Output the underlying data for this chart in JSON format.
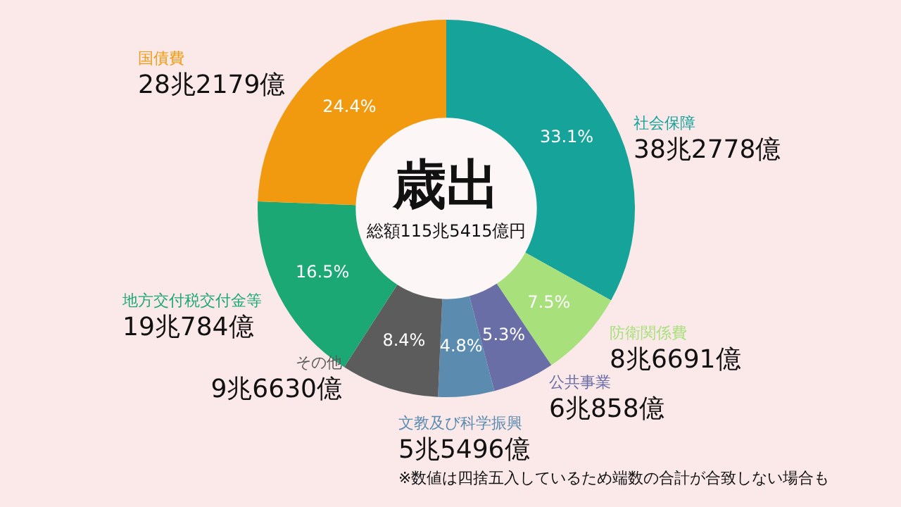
{
  "chart_data": {
    "type": "donut",
    "title": "歳出",
    "subtitle": "総額115兆5415億円",
    "categories": [
      "社会保障",
      "防衛関係費",
      "公共事業",
      "文教及び科学振興",
      "その他",
      "地方交付税交付金等",
      "国債費"
    ],
    "values": [
      33.1,
      7.5,
      5.3,
      4.8,
      8.4,
      16.5,
      24.4
    ],
    "colors": [
      "#16a39a",
      "#a8e07c",
      "#6a6ea6",
      "#5b8cb0",
      "#5c5c5c",
      "#1ba875",
      "#f29a0f"
    ],
    "value_labels": [
      "33.1%",
      "7.5%",
      "5.3%",
      "4.8%",
      "8.4%",
      "16.5%",
      "24.4%"
    ],
    "annotations": [
      {
        "text": "38兆2778億",
        "x": "社会保障"
      },
      {
        "text": "8兆6691億",
        "x": "防衛関係費"
      },
      {
        "text": "6兆858億",
        "x": "公共事業"
      },
      {
        "text": "5兆5496億",
        "x": "文教及び科学振興"
      },
      {
        "text": "9兆6630億",
        "x": "その他"
      },
      {
        "text": "19兆784億",
        "x": "地方交付税交付金等"
      },
      {
        "text": "28兆2179億",
        "x": "国債費"
      },
      "※数値は四捨五入しているため端数の合計が合致しない場合も"
    ],
    "legend": false
  }
}
